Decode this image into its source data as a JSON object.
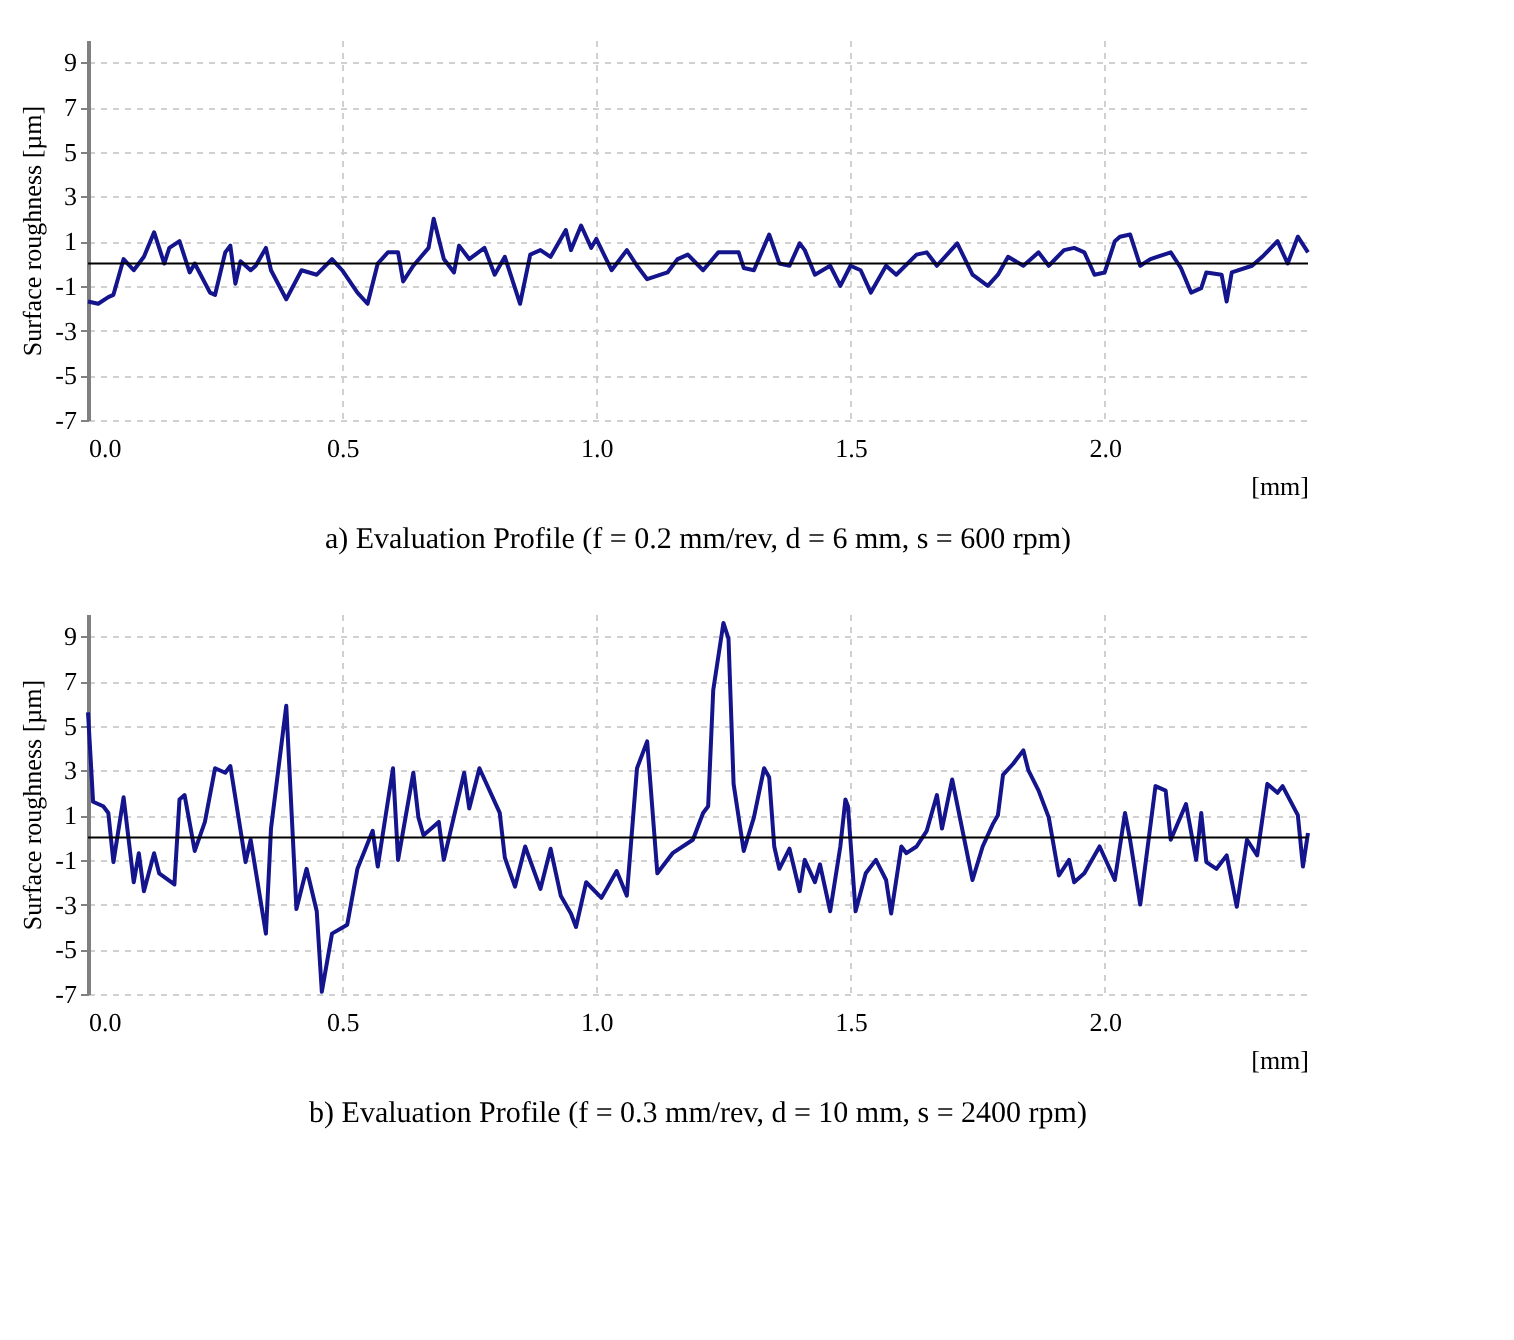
{
  "chart_data": [
    {
      "type": "line",
      "title": "a) Evaluation Profile (f = 0.2 mm/rev, d = 6 mm, s = 600 rpm)",
      "xlabel": "[mm]",
      "ylabel": "Surface roughness [µm]",
      "xlim": [
        0,
        2.4
      ],
      "ylim": [
        -7,
        10
      ],
      "xticks": [
        {
          "value": 0,
          "label": "0.0"
        },
        {
          "value": 0.5,
          "label": "0.5"
        },
        {
          "value": 1,
          "label": "1.0"
        },
        {
          "value": 1.5,
          "label": "1.5"
        },
        {
          "value": 2,
          "label": "2.0"
        }
      ],
      "yticks": [
        -7,
        -5,
        -3,
        -1,
        1,
        3,
        5,
        7,
        9
      ],
      "grid": true,
      "ref_lines": [
        {
          "axis": "y",
          "value": 0,
          "color": "#000000"
        }
      ],
      "x": [
        0.0,
        0.02,
        0.04,
        0.05,
        0.07,
        0.09,
        0.11,
        0.13,
        0.15,
        0.16,
        0.18,
        0.2,
        0.21,
        0.24,
        0.25,
        0.27,
        0.28,
        0.29,
        0.3,
        0.32,
        0.33,
        0.35,
        0.36,
        0.39,
        0.42,
        0.45,
        0.48,
        0.5,
        0.53,
        0.55,
        0.57,
        0.59,
        0.61,
        0.62,
        0.64,
        0.67,
        0.68,
        0.7,
        0.72,
        0.73,
        0.75,
        0.78,
        0.8,
        0.82,
        0.85,
        0.87,
        0.89,
        0.91,
        0.94,
        0.95,
        0.97,
        0.99,
        1.0,
        1.03,
        1.06,
        1.08,
        1.1,
        1.14,
        1.16,
        1.18,
        1.21,
        1.24,
        1.28,
        1.29,
        1.31,
        1.34,
        1.36,
        1.38,
        1.4,
        1.41,
        1.43,
        1.46,
        1.48,
        1.5,
        1.52,
        1.54,
        1.57,
        1.59,
        1.63,
        1.65,
        1.67,
        1.71,
        1.74,
        1.77,
        1.79,
        1.81,
        1.84,
        1.87,
        1.89,
        1.92,
        1.94,
        1.96,
        1.98,
        2.0,
        2.02,
        2.03,
        2.05,
        2.07,
        2.09,
        2.13,
        2.15,
        2.17,
        2.19,
        2.2,
        2.23,
        2.24,
        2.25,
        2.29,
        2.31,
        2.34,
        2.36,
        2.38,
        2.4
      ],
      "series": [
        {
          "color": "#14148c",
          "values": [
            -1.7,
            -1.8,
            -1.5,
            -1.4,
            0.2,
            -0.3,
            0.3,
            1.4,
            0.0,
            0.7,
            1.0,
            -0.4,
            0.0,
            -1.3,
            -1.4,
            0.5,
            0.8,
            -0.9,
            0.1,
            -0.3,
            -0.1,
            0.7,
            -0.3,
            -1.6,
            -0.3,
            -0.5,
            0.2,
            -0.3,
            -1.3,
            -1.8,
            0.0,
            0.5,
            0.5,
            -0.8,
            -0.1,
            0.7,
            2.0,
            0.2,
            -0.4,
            0.8,
            0.2,
            0.7,
            -0.5,
            0.3,
            -1.8,
            0.4,
            0.6,
            0.3,
            1.5,
            0.6,
            1.7,
            0.7,
            1.1,
            -0.3,
            0.6,
            -0.1,
            -0.7,
            -0.4,
            0.2,
            0.4,
            -0.3,
            0.5,
            0.5,
            -0.2,
            -0.3,
            1.3,
            0.0,
            -0.1,
            0.9,
            0.6,
            -0.5,
            -0.1,
            -1.0,
            -0.1,
            -0.3,
            -1.3,
            -0.1,
            -0.5,
            0.4,
            0.5,
            -0.1,
            0.9,
            -0.5,
            -1.0,
            -0.5,
            0.3,
            -0.1,
            0.5,
            -0.1,
            0.6,
            0.7,
            0.5,
            -0.5,
            -0.4,
            1.0,
            1.2,
            1.3,
            -0.1,
            0.2,
            0.5,
            -0.2,
            -1.3,
            -1.1,
            -0.4,
            -0.5,
            -1.7,
            -0.4,
            -0.1,
            0.3,
            1.0,
            0.0,
            1.2,
            0.5
          ]
        }
      ]
    },
    {
      "type": "line",
      "title": "b) Evaluation Profile (f = 0.3 mm/rev, d = 10 mm, s = 2400 rpm)",
      "xlabel": "[mm]",
      "ylabel": "Surface roughness [µm]",
      "xlim": [
        0,
        2.4
      ],
      "ylim": [
        -7,
        10
      ],
      "xticks": [
        {
          "value": 0,
          "label": "0.0"
        },
        {
          "value": 0.5,
          "label": "0.5"
        },
        {
          "value": 1,
          "label": "1.0"
        },
        {
          "value": 1.5,
          "label": "1.5"
        },
        {
          "value": 2,
          "label": "2.0"
        }
      ],
      "yticks": [
        -7,
        -5,
        -3,
        -1,
        1,
        3,
        5,
        7,
        9
      ],
      "grid": true,
      "ref_lines": [
        {
          "axis": "y",
          "value": 0,
          "color": "#000000"
        }
      ],
      "x": [
        0.0,
        0.01,
        0.03,
        0.04,
        0.05,
        0.07,
        0.09,
        0.1,
        0.11,
        0.13,
        0.14,
        0.17,
        0.18,
        0.19,
        0.21,
        0.23,
        0.25,
        0.27,
        0.28,
        0.31,
        0.32,
        0.35,
        0.36,
        0.39,
        0.41,
        0.43,
        0.45,
        0.46,
        0.48,
        0.51,
        0.53,
        0.56,
        0.57,
        0.6,
        0.61,
        0.64,
        0.65,
        0.66,
        0.69,
        0.7,
        0.74,
        0.75,
        0.77,
        0.81,
        0.82,
        0.84,
        0.86,
        0.89,
        0.91,
        0.93,
        0.95,
        0.96,
        0.98,
        1.01,
        1.04,
        1.06,
        1.08,
        1.1,
        1.12,
        1.15,
        1.19,
        1.21,
        1.22,
        1.23,
        1.25,
        1.26,
        1.27,
        1.29,
        1.31,
        1.33,
        1.34,
        1.35,
        1.36,
        1.38,
        1.4,
        1.41,
        1.43,
        1.44,
        1.46,
        1.48,
        1.49,
        1.495,
        1.51,
        1.53,
        1.55,
        1.57,
        1.58,
        1.6,
        1.61,
        1.63,
        1.65,
        1.67,
        1.68,
        1.7,
        1.74,
        1.76,
        1.78,
        1.79,
        1.8,
        1.82,
        1.84,
        1.85,
        1.87,
        1.89,
        1.91,
        1.93,
        1.94,
        1.96,
        1.99,
        2.02,
        2.04,
        2.05,
        2.07,
        2.1,
        2.12,
        2.13,
        2.16,
        2.18,
        2.19,
        2.2,
        2.22,
        2.24,
        2.26,
        2.28,
        2.3,
        2.32,
        2.34,
        2.35,
        2.38,
        2.39,
        2.4
      ],
      "series": [
        {
          "color": "#14148c",
          "values": [
            5.6,
            1.6,
            1.4,
            1.1,
            -1.1,
            1.8,
            -2.0,
            -0.7,
            -2.4,
            -0.7,
            -1.6,
            -2.1,
            1.7,
            1.9,
            -0.6,
            0.7,
            3.1,
            2.9,
            3.2,
            -1.1,
            -0.1,
            -4.3,
            0.4,
            5.9,
            -3.2,
            -1.4,
            -3.3,
            -6.9,
            -4.3,
            -3.9,
            -1.4,
            0.3,
            -1.3,
            3.1,
            -1.0,
            2.9,
            0.9,
            0.1,
            0.7,
            -1.0,
            2.9,
            1.3,
            3.1,
            1.1,
            -0.9,
            -2.2,
            -0.4,
            -2.3,
            -0.5,
            -2.6,
            -3.4,
            -4.0,
            -2.0,
            -2.7,
            -1.5,
            -2.6,
            3.1,
            4.3,
            -1.6,
            -0.7,
            -0.1,
            1.1,
            1.4,
            6.6,
            9.6,
            8.9,
            2.4,
            -0.6,
            0.9,
            3.1,
            2.7,
            -0.4,
            -1.4,
            -0.5,
            -2.4,
            -1.0,
            -2.0,
            -1.2,
            -3.3,
            -0.4,
            1.7,
            1.4,
            -3.3,
            -1.6,
            -1.0,
            -1.9,
            -3.4,
            -0.4,
            -0.7,
            -0.4,
            0.3,
            1.9,
            0.4,
            2.6,
            -1.9,
            -0.4,
            0.6,
            1.0,
            2.8,
            3.3,
            3.9,
            3.0,
            2.1,
            0.9,
            -1.7,
            -1.0,
            -2.0,
            -1.6,
            -0.4,
            -1.9,
            1.1,
            -0.1,
            -3.0,
            2.3,
            2.1,
            -0.1,
            1.5,
            -1.0,
            1.1,
            -1.1,
            -1.4,
            -0.8,
            -3.1,
            -0.1,
            -0.8,
            2.4,
            2.0,
            2.3,
            1.0,
            -1.3,
            0.2
          ]
        }
      ]
    }
  ]
}
